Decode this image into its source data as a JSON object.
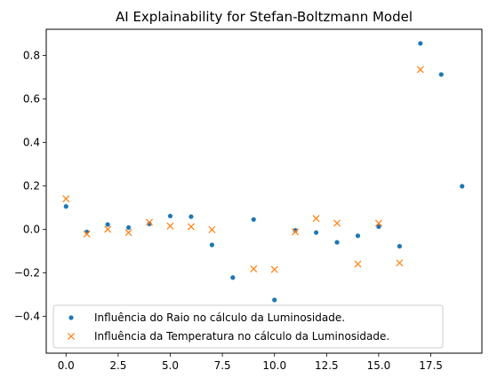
{
  "chart_data": {
    "type": "scatter",
    "title": "AI Explainability for Stefan-Boltzmann Model",
    "xlabel": "",
    "ylabel": "",
    "xlim": [
      -0.95,
      19.95
    ],
    "ylim": [
      -0.57,
      0.92
    ],
    "x_ticks": [
      0.0,
      2.5,
      5.0,
      7.5,
      10.0,
      12.5,
      15.0,
      17.5
    ],
    "x_tick_labels": [
      "0.0",
      "2.5",
      "5.0",
      "7.5",
      "10.0",
      "12.5",
      "15.0",
      "17.5"
    ],
    "y_ticks": [
      -0.4,
      -0.2,
      0.0,
      0.2,
      0.4,
      0.6,
      0.8
    ],
    "y_tick_labels": [
      "−0.4",
      "−0.2",
      "0.0",
      "0.2",
      "0.4",
      "0.6",
      "0.8"
    ],
    "grid": false,
    "legend_position": "lower-left",
    "series": [
      {
        "name": "Influência do Raio no cálculo da Luminosidade.",
        "marker": "dot",
        "color": "#1f77b4",
        "x": [
          0,
          1,
          2,
          3,
          4,
          5,
          6,
          7,
          8,
          9,
          10,
          11,
          12,
          13,
          14,
          15,
          16,
          17,
          18,
          19
        ],
        "values": [
          0.105,
          -0.012,
          0.022,
          0.008,
          0.025,
          0.061,
          0.058,
          -0.072,
          -0.222,
          0.045,
          -0.325,
          -0.005,
          -0.015,
          -0.06,
          -0.03,
          0.012,
          -0.078,
          0.855,
          0.712,
          0.198
        ]
      },
      {
        "name": "Influência da Temperatura no cálculo da Luminosidade.",
        "marker": "x",
        "color": "#ff7f0e",
        "x": [
          0,
          1,
          2,
          3,
          4,
          5,
          6,
          7,
          9,
          10,
          11,
          12,
          13,
          14,
          15,
          16,
          17
        ],
        "values": [
          0.14,
          -0.022,
          0.0,
          -0.015,
          0.032,
          0.015,
          0.012,
          -0.002,
          -0.182,
          -0.185,
          -0.012,
          0.05,
          0.028,
          -0.16,
          0.028,
          -0.155,
          0.735
        ]
      }
    ]
  }
}
